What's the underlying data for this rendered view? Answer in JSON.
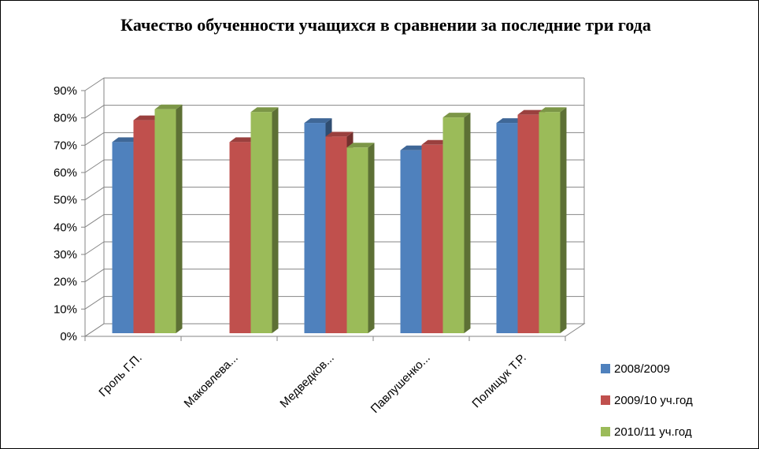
{
  "chart_data": {
    "type": "bar",
    "title": "Качество обученности учащихся в сравнении за последние три года",
    "xlabel": "",
    "ylabel": "",
    "ylim": [
      0,
      90
    ],
    "yticks": [
      "0%",
      "10%",
      "20%",
      "30%",
      "40%",
      "50%",
      "60%",
      "70%",
      "80%",
      "90%"
    ],
    "grid": true,
    "legend_position": "right",
    "categories": [
      "Гроль Г.П.",
      "Маковлева...",
      "Медведков...",
      "Павлушенко...",
      "Полищук Т.Р."
    ],
    "series": [
      {
        "name": "2008/2009",
        "color": "#4F81BD",
        "values": [
          70,
          null,
          77,
          67,
          77
        ]
      },
      {
        "name": "2009/10 уч.год",
        "color": "#C0504D",
        "values": [
          78,
          70,
          72,
          69,
          80
        ]
      },
      {
        "name": "2010/11 уч.год",
        "color": "#9BBB59",
        "values": [
          82,
          81,
          68,
          79,
          81
        ]
      }
    ]
  }
}
